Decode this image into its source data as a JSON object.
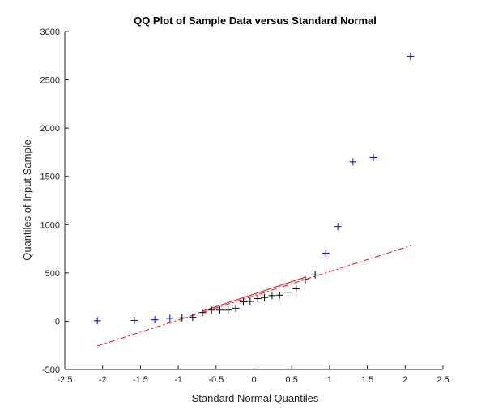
{
  "chart_data": {
    "type": "scatter",
    "title": "QQ Plot of Sample Data versus Standard Normal",
    "xlabel": "Standard Normal Quantiles",
    "ylabel": "Quantiles of Input Sample",
    "xlim": [
      -2.5,
      2.5
    ],
    "ylim": [
      -500,
      3000
    ],
    "xticks": [
      -2.5,
      -2,
      -1.5,
      -1,
      -0.5,
      0,
      0.5,
      1,
      1.5,
      2,
      2.5
    ],
    "yticks": [
      -500,
      0,
      500,
      1000,
      1500,
      2000,
      2500,
      3000
    ],
    "xtick_labels": [
      "-2.5",
      "-2",
      "-1.5",
      "-1",
      "-0.5",
      "0",
      "0.5",
      "1",
      "1.5",
      "2",
      "2.5"
    ],
    "ytick_labels": [
      "-500",
      "0",
      "500",
      "1000",
      "1500",
      "2000",
      "2500",
      "3000"
    ],
    "grid": false,
    "colors": {
      "points": "#0000ff",
      "points_inner": "#000000",
      "line": "#ff0000"
    },
    "points": [
      {
        "x": -2.07,
        "y": 5
      },
      {
        "x": -1.58,
        "y": 8
      },
      {
        "x": -1.31,
        "y": 15
      },
      {
        "x": -1.11,
        "y": 30
      },
      {
        "x": -0.95,
        "y": 35
      },
      {
        "x": -0.81,
        "y": 40
      },
      {
        "x": -0.68,
        "y": 90
      },
      {
        "x": -0.56,
        "y": 115
      },
      {
        "x": -0.45,
        "y": 115
      },
      {
        "x": -0.34,
        "y": 115
      },
      {
        "x": -0.24,
        "y": 135
      },
      {
        "x": -0.14,
        "y": 200
      },
      {
        "x": -0.05,
        "y": 205
      },
      {
        "x": 0.05,
        "y": 235
      },
      {
        "x": 0.14,
        "y": 245
      },
      {
        "x": 0.24,
        "y": 265
      },
      {
        "x": 0.34,
        "y": 270
      },
      {
        "x": 0.45,
        "y": 300
      },
      {
        "x": 0.56,
        "y": 335
      },
      {
        "x": 0.68,
        "y": 430
      },
      {
        "x": 0.81,
        "y": 480
      },
      {
        "x": 0.95,
        "y": 705
      },
      {
        "x": 1.11,
        "y": 980
      },
      {
        "x": 1.31,
        "y": 1650
      },
      {
        "x": 1.58,
        "y": 1695
      },
      {
        "x": 2.07,
        "y": 2745
      }
    ],
    "reference_line": {
      "solid": {
        "x": [
          -0.674,
          0.674
        ],
        "y": [
          106,
          455
        ]
      },
      "dashdot": {
        "x": [
          -2.07,
          2.07
        ],
        "y": [
          -256,
          781
        ]
      }
    }
  }
}
